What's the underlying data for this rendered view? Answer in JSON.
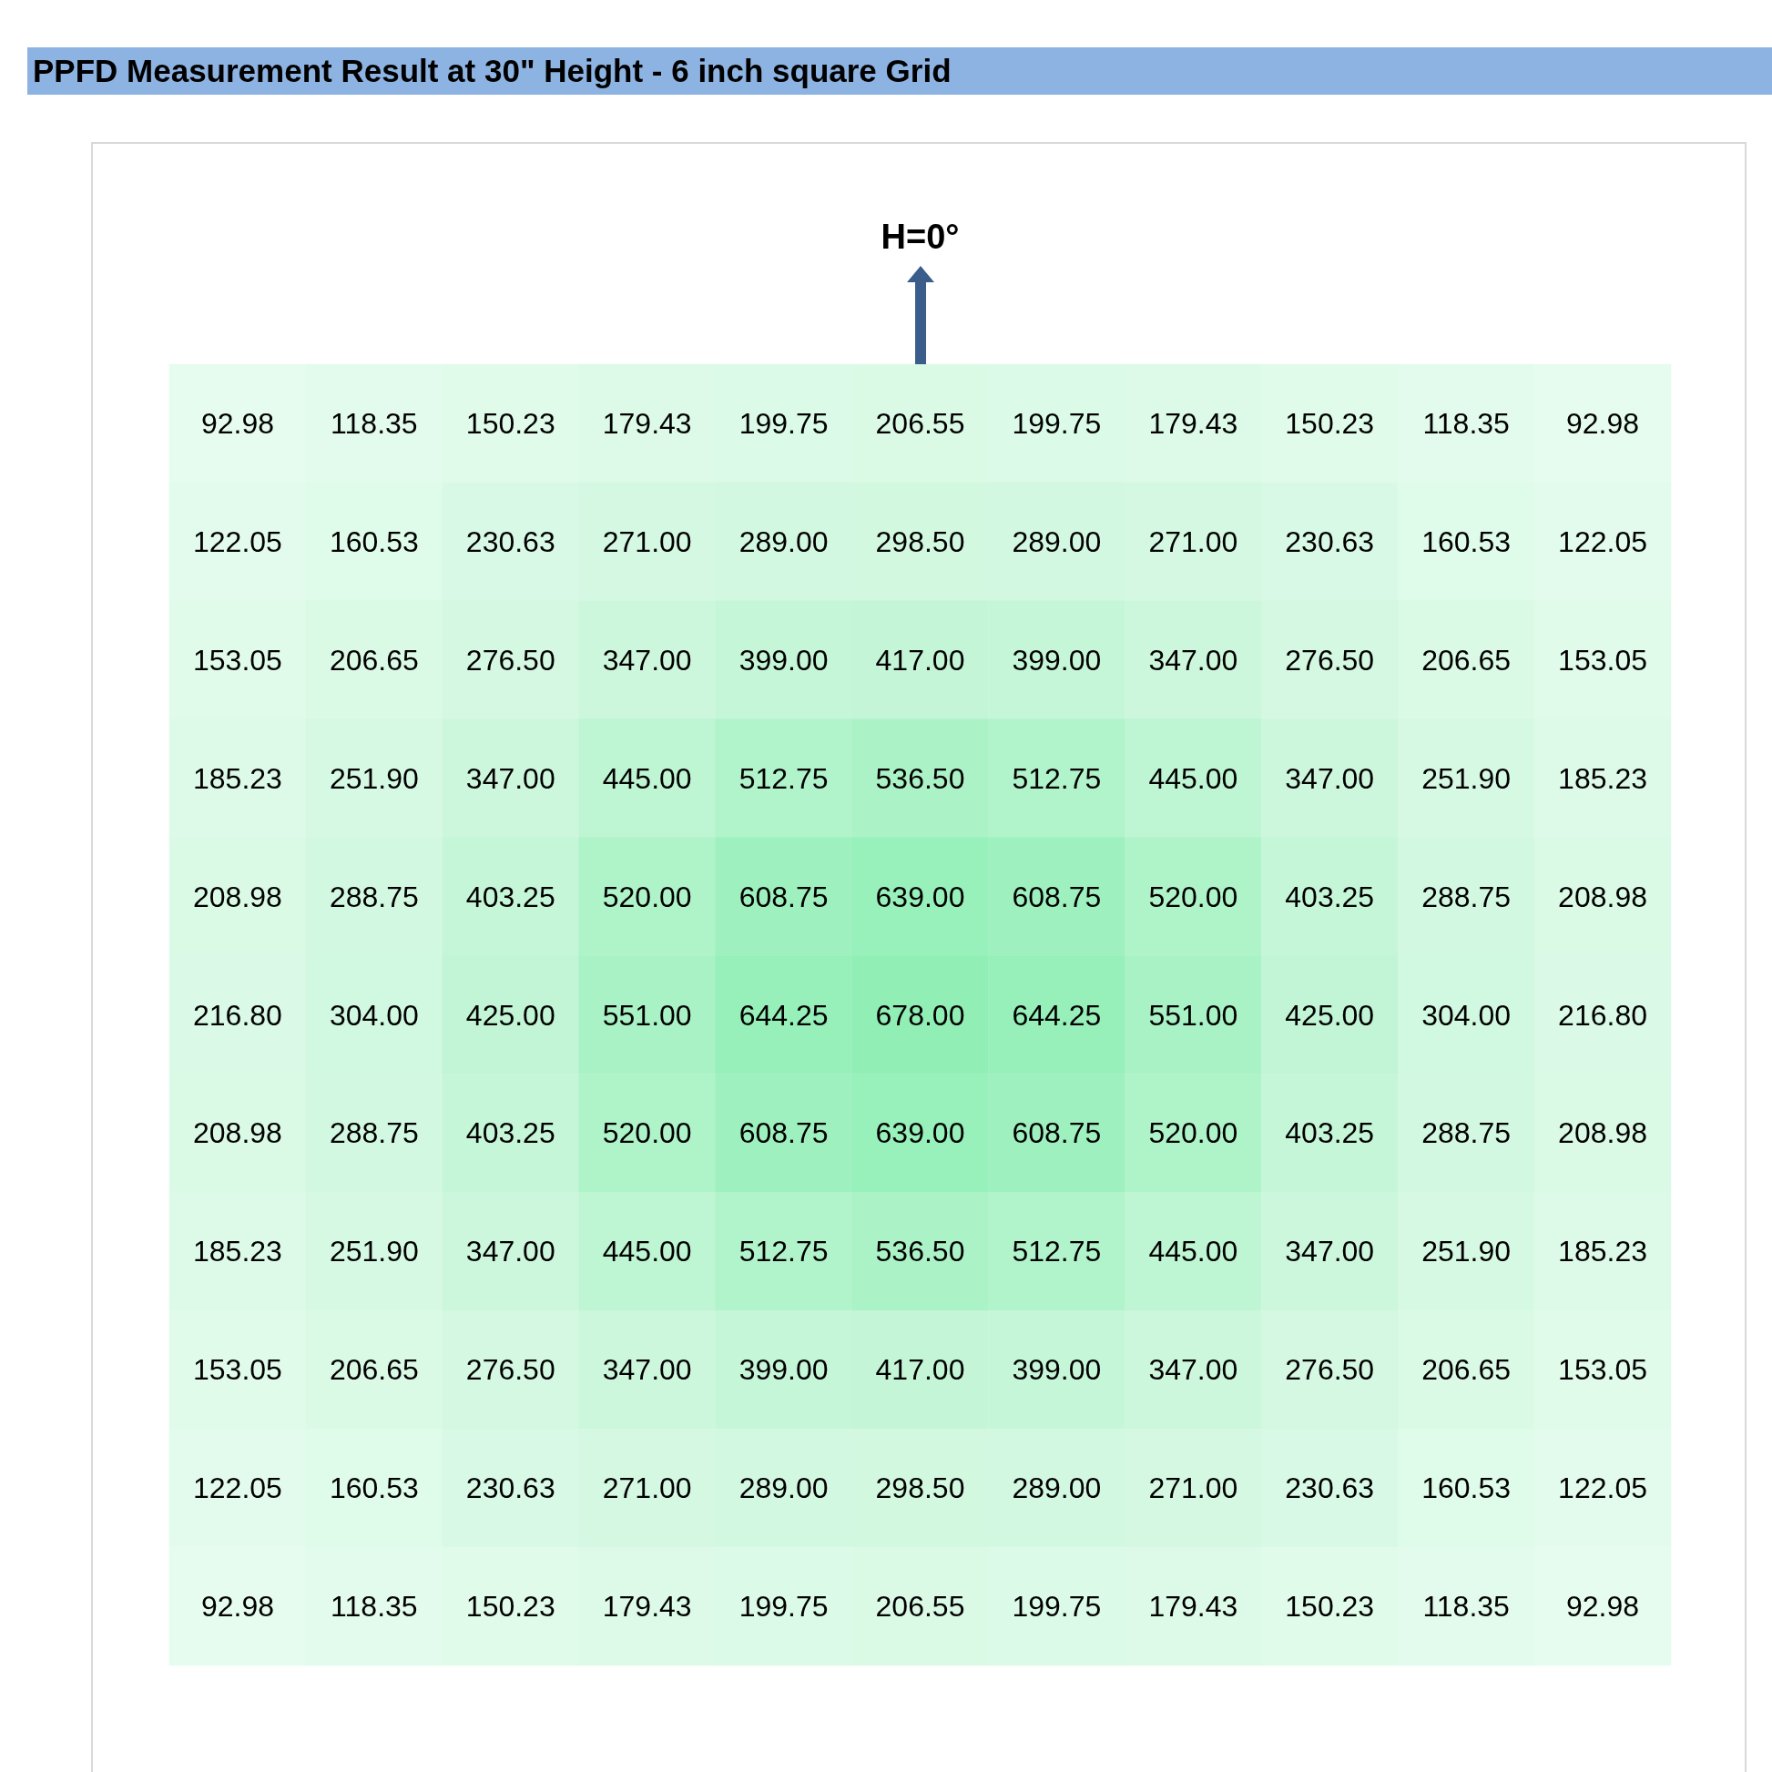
{
  "chart_data": {
    "type": "heatmap",
    "title": "PPFD Measurement Result at 30\" Height - 6 inch square Grid",
    "annotations": [
      "H=0°"
    ],
    "categories": [
      null,
      null,
      null,
      null,
      null,
      null,
      null,
      null,
      null,
      null,
      null
    ],
    "y_categories": [
      null,
      null,
      null,
      null,
      null,
      null,
      null,
      null,
      null,
      null,
      null
    ],
    "cells": [
      [
        92.98,
        118.35,
        150.23,
        179.43,
        199.75,
        206.55,
        199.75,
        179.43,
        150.23,
        118.35,
        92.98
      ],
      [
        122.05,
        160.53,
        230.63,
        271.0,
        289.0,
        298.5,
        289.0,
        271.0,
        230.63,
        160.53,
        122.05
      ],
      [
        153.05,
        206.65,
        276.5,
        347.0,
        399.0,
        417.0,
        399.0,
        347.0,
        276.5,
        206.65,
        153.05
      ],
      [
        185.23,
        251.9,
        347.0,
        445.0,
        512.75,
        536.5,
        512.75,
        445.0,
        347.0,
        251.9,
        185.23
      ],
      [
        208.98,
        288.75,
        403.25,
        520.0,
        608.75,
        639.0,
        608.75,
        520.0,
        403.25,
        288.75,
        208.98
      ],
      [
        216.8,
        304.0,
        425.0,
        551.0,
        644.25,
        678.0,
        644.25,
        551.0,
        425.0,
        304.0,
        216.8
      ],
      [
        208.98,
        288.75,
        403.25,
        520.0,
        608.75,
        639.0,
        608.75,
        520.0,
        403.25,
        288.75,
        208.98
      ],
      [
        185.23,
        251.9,
        347.0,
        445.0,
        512.75,
        536.5,
        512.75,
        445.0,
        347.0,
        251.9,
        185.23
      ],
      [
        153.05,
        206.65,
        276.5,
        347.0,
        399.0,
        417.0,
        399.0,
        347.0,
        276.5,
        206.65,
        153.05
      ],
      [
        122.05,
        160.53,
        230.63,
        271.0,
        289.0,
        298.5,
        289.0,
        271.0,
        230.63,
        160.53,
        122.05
      ],
      [
        92.98,
        118.35,
        150.23,
        179.43,
        199.75,
        206.55,
        199.75,
        179.43,
        150.23,
        118.35,
        92.98
      ]
    ],
    "cell_labels": [
      [
        "92.98",
        "118.35",
        "150.23",
        "179.43",
        "199.75",
        "206.55",
        "199.75",
        "179.43",
        "150.23",
        "118.35",
        "92.98"
      ],
      [
        "122.05",
        "160.53",
        "230.63",
        "271.00",
        "289.00",
        "298.50",
        "289.00",
        "271.00",
        "230.63",
        "160.53",
        "122.05"
      ],
      [
        "153.05",
        "206.65",
        "276.50",
        "347.00",
        "399.00",
        "417.00",
        "399.00",
        "347.00",
        "276.50",
        "206.65",
        "153.05"
      ],
      [
        "185.23",
        "251.90",
        "347.00",
        "445.00",
        "512.75",
        "536.50",
        "512.75",
        "445.00",
        "347.00",
        "251.90",
        "185.23"
      ],
      [
        "208.98",
        "288.75",
        "403.25",
        "520.00",
        "608.75",
        "639.00",
        "608.75",
        "520.00",
        "403.25",
        "288.75",
        "208.98"
      ],
      [
        "216.80",
        "304.00",
        "425.00",
        "551.00",
        "644.25",
        "678.00",
        "644.25",
        "551.00",
        "425.00",
        "304.00",
        "216.80"
      ],
      [
        "208.98",
        "288.75",
        "403.25",
        "520.00",
        "608.75",
        "639.00",
        "608.75",
        "520.00",
        "403.25",
        "288.75",
        "208.98"
      ],
      [
        "185.23",
        "251.90",
        "347.00",
        "445.00",
        "512.75",
        "536.50",
        "512.75",
        "445.00",
        "347.00",
        "251.90",
        "185.23"
      ],
      [
        "153.05",
        "206.65",
        "276.50",
        "347.00",
        "399.00",
        "417.00",
        "399.00",
        "347.00",
        "276.50",
        "206.65",
        "153.05"
      ],
      [
        "122.05",
        "160.53",
        "230.63",
        "271.00",
        "289.00",
        "298.50",
        "289.00",
        "271.00",
        "230.63",
        "160.53",
        "122.05"
      ],
      [
        "92.98",
        "118.35",
        "150.23",
        "179.43",
        "199.75",
        "206.55",
        "199.75",
        "179.43",
        "150.23",
        "118.35",
        "92.98"
      ]
    ],
    "data_labels": true
  }
}
